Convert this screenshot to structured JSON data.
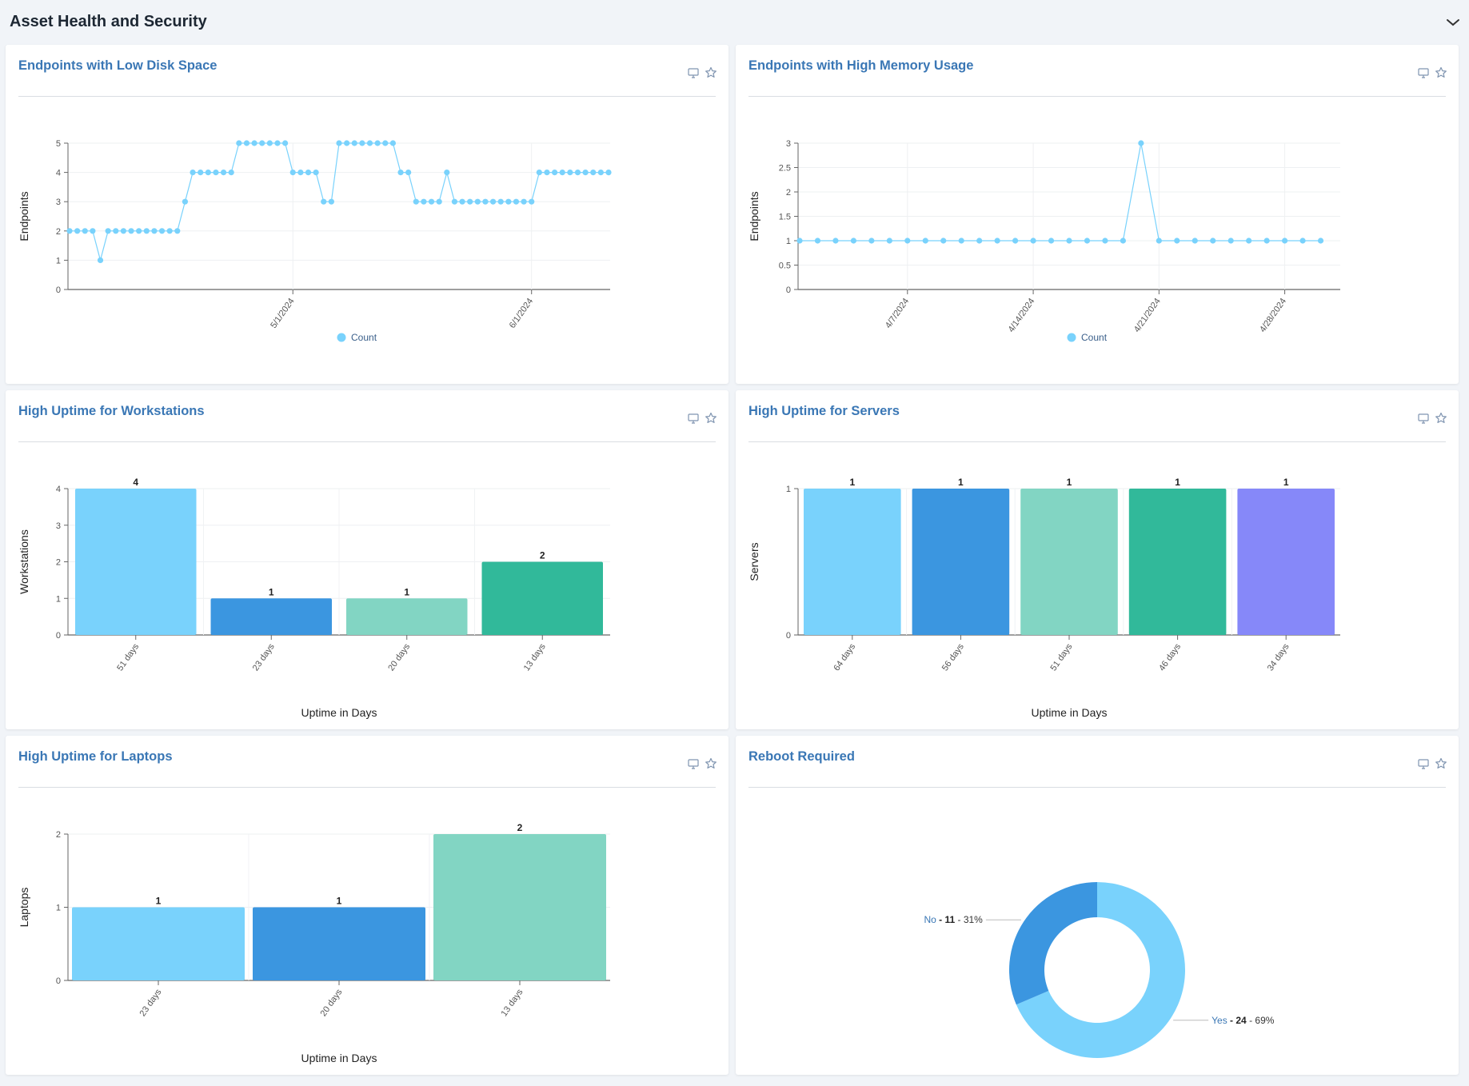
{
  "section": {
    "title": "Asset Health and Security",
    "collapse_icon": "chevron-down-icon"
  },
  "icons": {
    "monitor": "monitor-icon",
    "star": "star-icon"
  },
  "colors": {
    "accent": "#3a77b5",
    "line": "#79d2fc",
    "bar1": "#79d2fc",
    "bar2": "#3b96e0",
    "bar3": "#82d5c3",
    "bar4": "#31b99a",
    "bar5": "#8688f9",
    "donut_yes": "#79d2fc",
    "donut_no": "#3b96e0"
  },
  "cards": [
    {
      "title": "Endpoints with Low Disk Space"
    },
    {
      "title": "Endpoints with High Memory Usage"
    },
    {
      "title": "High Uptime for Workstations"
    },
    {
      "title": "High Uptime for Servers"
    },
    {
      "title": "High Uptime for Laptops"
    },
    {
      "title": "Reboot Required"
    }
  ],
  "chart_data": [
    {
      "type": "line",
      "title": "Endpoints with Low Disk Space",
      "ylabel": "Endpoints",
      "xlabel": "",
      "ylim": [
        0,
        5
      ],
      "yticks": [
        0,
        1,
        2,
        3,
        4,
        5
      ],
      "xticks": [
        {
          "label": "5/1/2024",
          "date": "2024-05-01"
        },
        {
          "label": "6/1/2024",
          "date": "2024-06-01"
        }
      ],
      "xrange": [
        "2024-04-02",
        "2024-06-11"
      ],
      "series": [
        {
          "name": "Count",
          "x": [
            "2024-04-02",
            "2024-04-03",
            "2024-04-04",
            "2024-04-05",
            "2024-04-06",
            "2024-04-07",
            "2024-04-08",
            "2024-04-09",
            "2024-04-10",
            "2024-04-11",
            "2024-04-12",
            "2024-04-13",
            "2024-04-14",
            "2024-04-15",
            "2024-04-16",
            "2024-04-17",
            "2024-04-18",
            "2024-04-19",
            "2024-04-20",
            "2024-04-21",
            "2024-04-22",
            "2024-04-23",
            "2024-04-24",
            "2024-04-25",
            "2024-04-26",
            "2024-04-27",
            "2024-04-28",
            "2024-04-29",
            "2024-04-30",
            "2024-05-01",
            "2024-05-02",
            "2024-05-03",
            "2024-05-04",
            "2024-05-05",
            "2024-05-06",
            "2024-05-07",
            "2024-05-08",
            "2024-05-09",
            "2024-05-10",
            "2024-05-11",
            "2024-05-12",
            "2024-05-13",
            "2024-05-14",
            "2024-05-15",
            "2024-05-16",
            "2024-05-17",
            "2024-05-18",
            "2024-05-19",
            "2024-05-20",
            "2024-05-21",
            "2024-05-22",
            "2024-05-23",
            "2024-05-24",
            "2024-05-25",
            "2024-05-26",
            "2024-05-27",
            "2024-05-28",
            "2024-05-29",
            "2024-05-30",
            "2024-05-31",
            "2024-06-01",
            "2024-06-02",
            "2024-06-03",
            "2024-06-04",
            "2024-06-05",
            "2024-06-06",
            "2024-06-07",
            "2024-06-08",
            "2024-06-09",
            "2024-06-10",
            "2024-06-11"
          ],
          "values": [
            2,
            2,
            2,
            2,
            1,
            2,
            2,
            2,
            2,
            2,
            2,
            2,
            2,
            2,
            2,
            3,
            4,
            4,
            4,
            4,
            4,
            4,
            5,
            5,
            5,
            5,
            5,
            5,
            5,
            4,
            4,
            4,
            4,
            3,
            3,
            5,
            5,
            5,
            5,
            5,
            5,
            5,
            5,
            4,
            4,
            3,
            3,
            3,
            3,
            4,
            3,
            3,
            3,
            3,
            3,
            3,
            3,
            3,
            3,
            3,
            3,
            4,
            4,
            4,
            4,
            4,
            4,
            4,
            4,
            4,
            4
          ]
        }
      ],
      "legend": "bottom",
      "grid": true
    },
    {
      "type": "line",
      "title": "Endpoints with High Memory Usage",
      "ylabel": "Endpoints",
      "xlabel": "",
      "ylim": [
        0,
        3
      ],
      "yticks": [
        0,
        0.5,
        1,
        1.5,
        2,
        2.5,
        3
      ],
      "xticks": [
        {
          "label": "4/7/2024",
          "date": "2024-04-07"
        },
        {
          "label": "4/14/2024",
          "date": "2024-04-14"
        },
        {
          "label": "4/21/2024",
          "date": "2024-04-21"
        },
        {
          "label": "4/28/2024",
          "date": "2024-04-28"
        }
      ],
      "xrange": [
        "2024-04-01",
        "2024-05-01"
      ],
      "series": [
        {
          "name": "Count",
          "x": [
            "2024-04-01",
            "2024-04-02",
            "2024-04-03",
            "2024-04-04",
            "2024-04-05",
            "2024-04-06",
            "2024-04-07",
            "2024-04-08",
            "2024-04-09",
            "2024-04-10",
            "2024-04-11",
            "2024-04-12",
            "2024-04-13",
            "2024-04-14",
            "2024-04-15",
            "2024-04-16",
            "2024-04-17",
            "2024-04-18",
            "2024-04-19",
            "2024-04-20",
            "2024-04-21",
            "2024-04-22",
            "2024-04-23",
            "2024-04-24",
            "2024-04-25",
            "2024-04-26",
            "2024-04-27",
            "2024-04-28",
            "2024-04-29",
            "2024-04-30"
          ],
          "values": [
            1,
            1,
            1,
            1,
            1,
            1,
            1,
            1,
            1,
            1,
            1,
            1,
            1,
            1,
            1,
            1,
            1,
            1,
            1,
            3,
            1,
            1,
            1,
            1,
            1,
            1,
            1,
            1,
            1,
            1
          ]
        }
      ],
      "legend": "bottom",
      "grid": true
    },
    {
      "type": "bar",
      "title": "High Uptime for Workstations",
      "ylabel": "Workstations",
      "xlabel": "Uptime in Days",
      "ylim": [
        0,
        4
      ],
      "yticks": [
        0,
        1,
        2,
        3,
        4
      ],
      "categories": [
        "51 days",
        "23 days",
        "20 days",
        "13 days"
      ],
      "values": [
        4,
        1,
        1,
        2
      ],
      "grid": true
    },
    {
      "type": "bar",
      "title": "High Uptime for Servers",
      "ylabel": "Servers",
      "xlabel": "Uptime in Days",
      "ylim": [
        0,
        1
      ],
      "yticks": [
        0,
        1
      ],
      "categories": [
        "64 days",
        "56 days",
        "51 days",
        "46 days",
        "34 days"
      ],
      "values": [
        1,
        1,
        1,
        1,
        1
      ],
      "grid": true
    },
    {
      "type": "bar",
      "title": "High Uptime for Laptops",
      "ylabel": "Laptops",
      "xlabel": "Uptime in Days",
      "ylim": [
        0,
        2
      ],
      "yticks": [
        0,
        1,
        2
      ],
      "categories": [
        "23 days",
        "20 days",
        "13 days"
      ],
      "values": [
        1,
        1,
        2
      ],
      "grid": true
    },
    {
      "type": "pie",
      "title": "Reboot Required",
      "donut": true,
      "slices": [
        {
          "label": "Yes",
          "value": 24,
          "percent": "69%"
        },
        {
          "label": "No",
          "value": 11,
          "percent": "31%"
        }
      ]
    }
  ]
}
